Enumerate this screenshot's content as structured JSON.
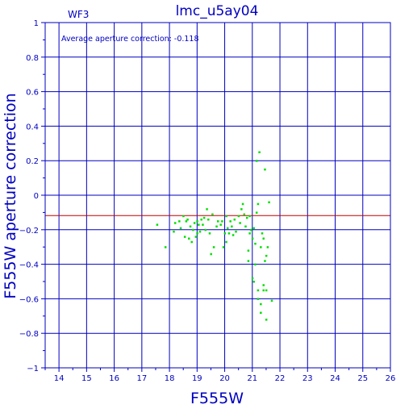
{
  "chart_data": {
    "type": "scatter",
    "title": "lmc_u5ay04",
    "corner_label": "WF3",
    "annotation": "Average aperture correction: -0.118",
    "xlabel": "F555W",
    "ylabel": "F555W aperture correction",
    "xlim": [
      13.5,
      26
    ],
    "ylim": [
      -1,
      1
    ],
    "xticks": [
      14,
      15,
      16,
      17,
      18,
      19,
      20,
      21,
      22,
      23,
      24,
      25,
      26
    ],
    "yticks": [
      -1,
      -0.8,
      -0.6,
      -0.4,
      -0.2,
      0,
      0.2,
      0.4,
      0.6,
      0.8,
      1
    ],
    "xtick_labels": [
      "14",
      "15",
      "16",
      "17",
      "18",
      "19",
      "20",
      "21",
      "22",
      "23",
      "24",
      "25",
      "26"
    ],
    "ytick_labels": [
      "−1",
      "−0.8",
      "−0.6",
      "−0.4",
      "−0.2",
      "0",
      "0.2",
      "0.4",
      "0.6",
      "0.8",
      "1"
    ],
    "grid": true,
    "reference_line_y": -0.118,
    "colors": {
      "frame": "#0000c0",
      "grid": "#0000c0",
      "text": "#0000c0",
      "points": "#00e000",
      "reference_line": "#c00000"
    },
    "points": [
      [
        17.55,
        -0.17
      ],
      [
        17.85,
        -0.3
      ],
      [
        18.15,
        -0.21
      ],
      [
        18.35,
        -0.15
      ],
      [
        18.4,
        -0.19
      ],
      [
        18.5,
        -0.12
      ],
      [
        18.55,
        -0.24
      ],
      [
        18.6,
        -0.15
      ],
      [
        18.65,
        -0.14
      ],
      [
        18.7,
        -0.25
      ],
      [
        18.75,
        -0.18
      ],
      [
        18.8,
        -0.27
      ],
      [
        18.85,
        -0.2
      ],
      [
        18.9,
        -0.16
      ],
      [
        18.95,
        -0.24
      ],
      [
        19.0,
        -0.15
      ],
      [
        19.05,
        -0.17
      ],
      [
        19.1,
        -0.21
      ],
      [
        19.15,
        -0.14
      ],
      [
        19.2,
        -0.17
      ],
      [
        19.25,
        -0.13
      ],
      [
        19.3,
        -0.2
      ],
      [
        19.35,
        -0.08
      ],
      [
        19.4,
        -0.14
      ],
      [
        19.45,
        -0.22
      ],
      [
        19.5,
        -0.34
      ],
      [
        19.55,
        -0.11
      ],
      [
        19.6,
        -0.3
      ],
      [
        19.7,
        -0.18
      ],
      [
        19.75,
        -0.15
      ],
      [
        19.85,
        -0.17
      ],
      [
        19.9,
        -0.15
      ],
      [
        19.95,
        -0.3
      ],
      [
        20.0,
        -0.22
      ],
      [
        20.05,
        -0.12
      ],
      [
        20.05,
        -0.27
      ],
      [
        20.1,
        -0.19
      ],
      [
        20.15,
        -0.22
      ],
      [
        20.2,
        -0.15
      ],
      [
        20.25,
        -0.18
      ],
      [
        20.3,
        -0.23
      ],
      [
        20.35,
        -0.14
      ],
      [
        20.4,
        -0.21
      ],
      [
        20.5,
        -0.12
      ],
      [
        20.55,
        -0.16
      ],
      [
        20.6,
        -0.08
      ],
      [
        20.65,
        -0.05
      ],
      [
        20.7,
        -0.11
      ],
      [
        20.75,
        -0.18
      ],
      [
        20.8,
        -0.13
      ],
      [
        20.85,
        -0.32
      ],
      [
        20.85,
        -0.38
      ],
      [
        20.9,
        -0.12
      ],
      [
        20.95,
        -0.2
      ],
      [
        21.0,
        -0.25
      ],
      [
        21.0,
        -0.48
      ],
      [
        21.05,
        -0.5
      ],
      [
        21.1,
        -0.28
      ],
      [
        21.1,
        -0.4
      ],
      [
        21.15,
        -0.1
      ],
      [
        21.2,
        -0.05
      ],
      [
        21.2,
        -0.55
      ],
      [
        21.2,
        -0.6
      ],
      [
        21.25,
        0.25
      ],
      [
        21.3,
        -0.3
      ],
      [
        21.3,
        -0.63
      ],
      [
        21.3,
        -0.68
      ],
      [
        21.35,
        -0.22
      ],
      [
        21.4,
        -0.25
      ],
      [
        21.4,
        -0.52
      ],
      [
        21.4,
        -0.55
      ],
      [
        21.45,
        0.15
      ],
      [
        21.45,
        -0.38
      ],
      [
        21.5,
        -0.35
      ],
      [
        21.5,
        -0.55
      ],
      [
        21.5,
        -0.72
      ],
      [
        21.55,
        -0.3
      ],
      [
        21.6,
        -0.04
      ],
      [
        21.7,
        -0.61
      ],
      [
        21.15,
        0.2
      ],
      [
        20.9,
        -0.22
      ],
      [
        21.05,
        -0.19
      ],
      [
        18.2,
        -0.16
      ],
      [
        19.0,
        -0.22
      ]
    ]
  }
}
